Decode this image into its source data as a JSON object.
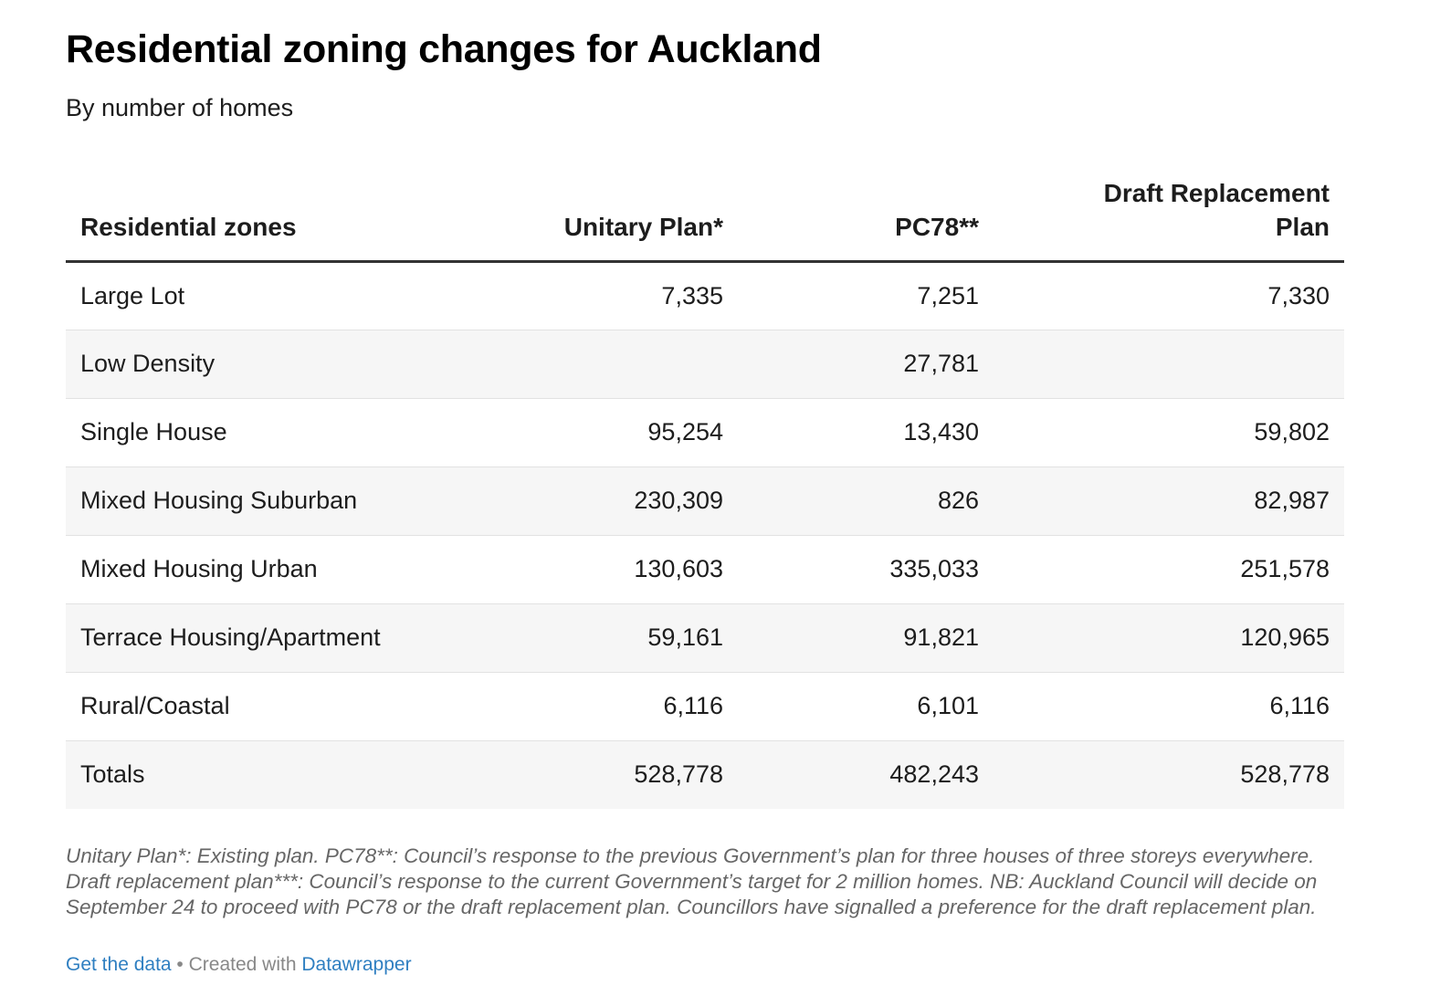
{
  "header": {
    "title": "Residential zoning changes for Auckland",
    "subtitle": "By number of homes"
  },
  "chart_data": {
    "type": "table",
    "columns": [
      "Residential zones",
      "Unitary Plan*",
      "PC78**",
      "Draft Replacement Plan"
    ],
    "rows": [
      {
        "zone": "Large Lot",
        "unitary": "7,335",
        "pc78": "7,251",
        "draft": "7,330"
      },
      {
        "zone": "Low Density",
        "unitary": "",
        "pc78": "27,781",
        "draft": ""
      },
      {
        "zone": "Single House",
        "unitary": "95,254",
        "pc78": "13,430",
        "draft": "59,802"
      },
      {
        "zone": "Mixed Housing Suburban",
        "unitary": "230,309",
        "pc78": "826",
        "draft": "82,987"
      },
      {
        "zone": "Mixed Housing Urban",
        "unitary": "130,603",
        "pc78": "335,033",
        "draft": "251,578"
      },
      {
        "zone": "Terrace Housing/Apartment",
        "unitary": "59,161",
        "pc78": "91,821",
        "draft": "120,965"
      },
      {
        "zone": "Rural/Coastal",
        "unitary": "6,116",
        "pc78": "6,101",
        "draft": "6,116"
      },
      {
        "zone": "Totals",
        "unitary": "528,778",
        "pc78": "482,243",
        "draft": "528,778"
      }
    ]
  },
  "notes": "Unitary Plan*: Existing plan. PC78**: Council’s response to the previous Government’s plan for three houses of three storeys everywhere. Draft replacement plan***: Council’s response to the current Government’s target for 2 million homes. NB: Auckland Council will decide on September 24 to proceed with PC78 or the draft replacement plan. Councillors have signalled a preference for the draft replacement plan.",
  "footer": {
    "get_data": "Get the data",
    "separator": " • ",
    "created_with": "Created with ",
    "tool": "Datawrapper"
  },
  "colors": {
    "link": "#2f7fc1",
    "stripe": "#f6f6f6",
    "header_rule": "#333333"
  }
}
